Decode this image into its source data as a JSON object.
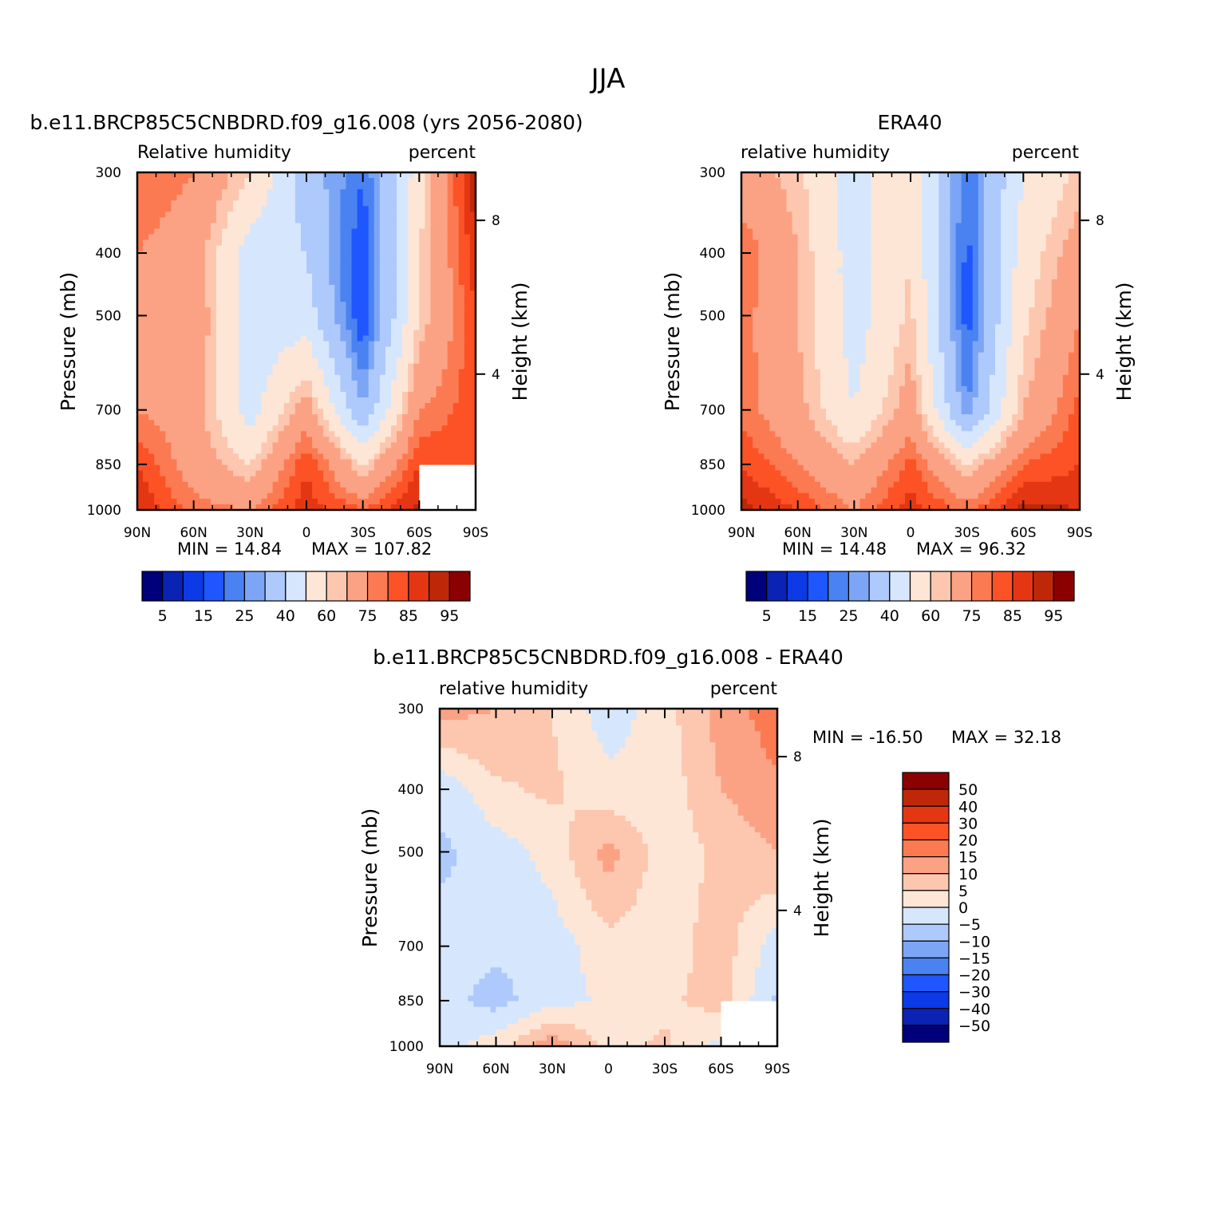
{
  "figure": {
    "title": "JJA"
  },
  "colors": {
    "rh_palette": [
      "#00007a",
      "#0a23b4",
      "#0b3ae6",
      "#1f56ff",
      "#4a82f2",
      "#7ca6f5",
      "#aec9fb",
      "#d6e7fd",
      "#fde6d6",
      "#fcc7ae",
      "#fca284",
      "#fc7a52",
      "#fc5226",
      "#e53614",
      "#be2809",
      "#8b0000"
    ],
    "diff_palette": [
      "#00007a",
      "#0a23b4",
      "#0b3ae6",
      "#1f56ff",
      "#4a82f2",
      "#7ca6f5",
      "#aec9fb",
      "#d6e7fd",
      "#fde6d6",
      "#fcc7ae",
      "#fca284",
      "#fc7a52",
      "#fc5226",
      "#e53614",
      "#be2809",
      "#8b0000"
    ]
  },
  "chart_data": [
    {
      "type": "heatmap",
      "panel": "model",
      "title": "b.e11.BRCP85C5CNBDRD.f09_g16.008 (yrs 2056-2080)",
      "left_label": "Relative humidity",
      "right_label": "percent",
      "ylabel": "Pressure (mb)",
      "y2label": "Height (km)",
      "x_ticks": [
        "90N",
        "60N",
        "30N",
        "0",
        "30S",
        "60S",
        "90S"
      ],
      "y_ticks": [
        "300",
        "400",
        "500",
        "700",
        "850",
        "1000"
      ],
      "y2_ticks": [
        "8",
        "4"
      ],
      "min_text": "MIN =   14.84",
      "max_text": "MAX = 107.82",
      "x": [
        -90,
        -60,
        -30,
        0,
        30,
        60,
        90
      ],
      "y": [
        300,
        400,
        500,
        700,
        850,
        1000
      ],
      "z": [
        [
          80,
          75,
          60,
          35,
          20,
          55,
          95
        ],
        [
          75,
          70,
          45,
          40,
          15,
          60,
          88
        ],
        [
          75,
          72,
          45,
          45,
          15,
          60,
          85
        ],
        [
          75,
          70,
          45,
          70,
          30,
          75,
          83
        ],
        [
          85,
          70,
          60,
          85,
          60,
          85,
          84
        ],
        [
          90,
          78,
          75,
          88,
          80,
          92,
          null
        ]
      ],
      "colorbar_ticks": [
        "5",
        "15",
        "25",
        "40",
        "60",
        "75",
        "85",
        "95"
      ]
    },
    {
      "type": "heatmap",
      "panel": "obs",
      "title": "ERA40",
      "left_label": "relative humidity",
      "right_label": "percent",
      "ylabel": "Pressure (mb)",
      "y2label": "Height (km)",
      "x_ticks": [
        "90N",
        "60N",
        "30N",
        "0",
        "30S",
        "60S",
        "90S"
      ],
      "y_ticks": [
        "300",
        "400",
        "500",
        "700",
        "850",
        "1000"
      ],
      "y2_ticks": [
        "8",
        "4"
      ],
      "min_text": "MIN =   14.48",
      "max_text": "MAX =   96.32",
      "x": [
        -90,
        -60,
        -30,
        0,
        30,
        60,
        90
      ],
      "y": [
        300,
        400,
        500,
        700,
        850,
        1000
      ],
      "z": [
        [
          70,
          62,
          45,
          60,
          20,
          50,
          62
        ],
        [
          80,
          65,
          45,
          60,
          18,
          55,
          70
        ],
        [
          78,
          65,
          45,
          62,
          17,
          58,
          75
        ],
        [
          78,
          68,
          50,
          70,
          25,
          65,
          82
        ],
        [
          85,
          75,
          65,
          82,
          60,
          80,
          85
        ],
        [
          92,
          85,
          75,
          88,
          78,
          92,
          90
        ]
      ],
      "colorbar_ticks": [
        "5",
        "15",
        "25",
        "40",
        "60",
        "75",
        "85",
        "95"
      ]
    },
    {
      "type": "heatmap",
      "panel": "difference",
      "title": "b.e11.BRCP85C5CNBDRD.f09_g16.008 - ERA40",
      "left_label": "relative humidity",
      "right_label": "percent",
      "ylabel": "Pressure (mb)",
      "y2label": "Height (km)",
      "x_ticks": [
        "90N",
        "60N",
        "30N",
        "0",
        "30S",
        "60S",
        "90S"
      ],
      "y_ticks": [
        "300",
        "400",
        "500",
        "700",
        "850",
        "1000"
      ],
      "y2_ticks": [
        "8",
        "4"
      ],
      "min_text": "MIN = -16.50",
      "max_text": "MAX =   32.18",
      "x": [
        -90,
        -60,
        -30,
        0,
        30,
        60,
        90
      ],
      "y": [
        300,
        400,
        500,
        700,
        850,
        1000
      ],
      "z": [
        [
          12,
          10,
          5,
          -3,
          3,
          12,
          18
        ],
        [
          -4,
          4,
          6,
          2,
          2,
          10,
          14
        ],
        [
          -6,
          -3,
          2,
          12,
          2,
          6,
          10
        ],
        [
          -3,
          -4,
          -3,
          3,
          2,
          8,
          -3
        ],
        [
          -3,
          -7,
          -2,
          1,
          4,
          7,
          -6
        ],
        [
          -2,
          3,
          14,
          3,
          6,
          -2,
          null
        ]
      ],
      "colorbar_labels": [
        "50",
        "40",
        "30",
        "20",
        "15",
        "10",
        "5",
        "0",
        "−5",
        "−10",
        "−15",
        "−20",
        "−30",
        "−40",
        "−50"
      ]
    }
  ]
}
